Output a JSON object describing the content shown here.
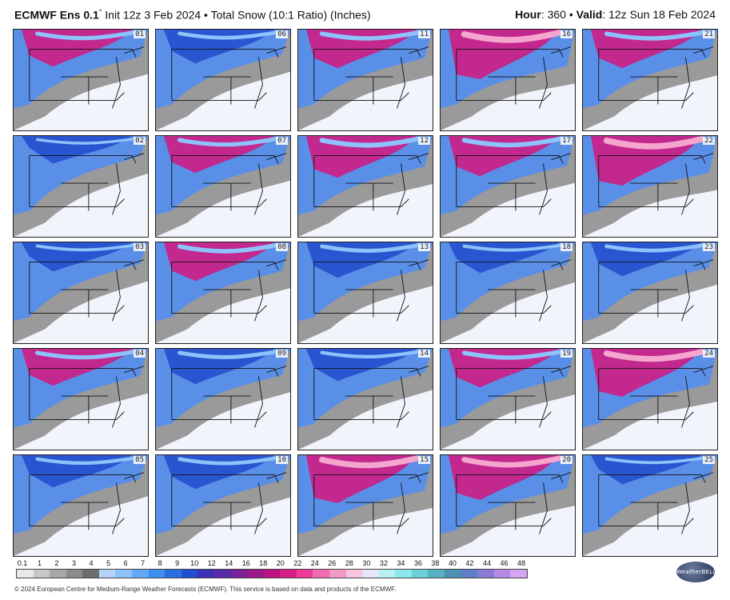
{
  "header": {
    "model": "ECMWF Ens 0.1",
    "degree": "°",
    "init": "Init 12z 3 Feb 2024 • Total Snow (10:1 Ratio) (Inches)",
    "hour_label": "Hour",
    "hour_value": ": 360 • ",
    "valid_label": "Valid",
    "valid_value": ": 12z Sun 18 Feb 2024"
  },
  "members": [
    {
      "id": "01",
      "intensity": 0.55
    },
    {
      "id": "06",
      "intensity": 0.45
    },
    {
      "id": "11",
      "intensity": 0.6
    },
    {
      "id": "16",
      "intensity": 0.95
    },
    {
      "id": "21",
      "intensity": 0.6
    },
    {
      "id": "02",
      "intensity": 0.25
    },
    {
      "id": "07",
      "intensity": 0.55
    },
    {
      "id": "12",
      "intensity": 0.7
    },
    {
      "id": "17",
      "intensity": 0.65
    },
    {
      "id": "22",
      "intensity": 0.95
    },
    {
      "id": "03",
      "intensity": 0.3
    },
    {
      "id": "08",
      "intensity": 0.6
    },
    {
      "id": "13",
      "intensity": 0.5
    },
    {
      "id": "18",
      "intensity": 0.35
    },
    {
      "id": "23",
      "intensity": 0.45
    },
    {
      "id": "04",
      "intensity": 0.55
    },
    {
      "id": "09",
      "intensity": 0.5
    },
    {
      "id": "14",
      "intensity": 0.4
    },
    {
      "id": "19",
      "intensity": 0.6
    },
    {
      "id": "24",
      "intensity": 0.9
    },
    {
      "id": "05",
      "intensity": 0.4
    },
    {
      "id": "10",
      "intensity": 0.45
    },
    {
      "id": "15",
      "intensity": 0.9
    },
    {
      "id": "20",
      "intensity": 0.8
    },
    {
      "id": "25",
      "intensity": 0.3
    }
  ],
  "legend": {
    "ticks": [
      "0.1",
      "1",
      "2",
      "3",
      "4",
      "5",
      "6",
      "7",
      "8",
      "9",
      "10",
      "12",
      "14",
      "16",
      "18",
      "20",
      "22",
      "24",
      "26",
      "28",
      "30",
      "32",
      "34",
      "36",
      "38",
      "40",
      "42",
      "44",
      "46",
      "48"
    ],
    "colors": [
      "#e9e9e9",
      "#c8c8c8",
      "#a8a8a8",
      "#8c8c8c",
      "#6e6e6e",
      "#b6d4fb",
      "#8ec2fa",
      "#64a8f8",
      "#3e8ef0",
      "#2a6fe0",
      "#1f4fd0",
      "#3b2fb8",
      "#5a2aa8",
      "#7a2298",
      "#9a1a8a",
      "#bc1480",
      "#d81c86",
      "#ee3c98",
      "#f26bb0",
      "#f59ac8",
      "#f8c6de",
      "#e6e6f6",
      "#b8f0f5",
      "#8ee6ea",
      "#6ccfd8",
      "#57b1c4",
      "#4a92b0",
      "#5e7ec8",
      "#8a7ad8",
      "#b58ae6",
      "#d6a6f0"
    ]
  },
  "logo_text": "WeatherBELL",
  "footer": "© 2024 European Centre for Medium-Range Weather Forecasts (ECMWF). This service is based on data and products of the ECMWF."
}
